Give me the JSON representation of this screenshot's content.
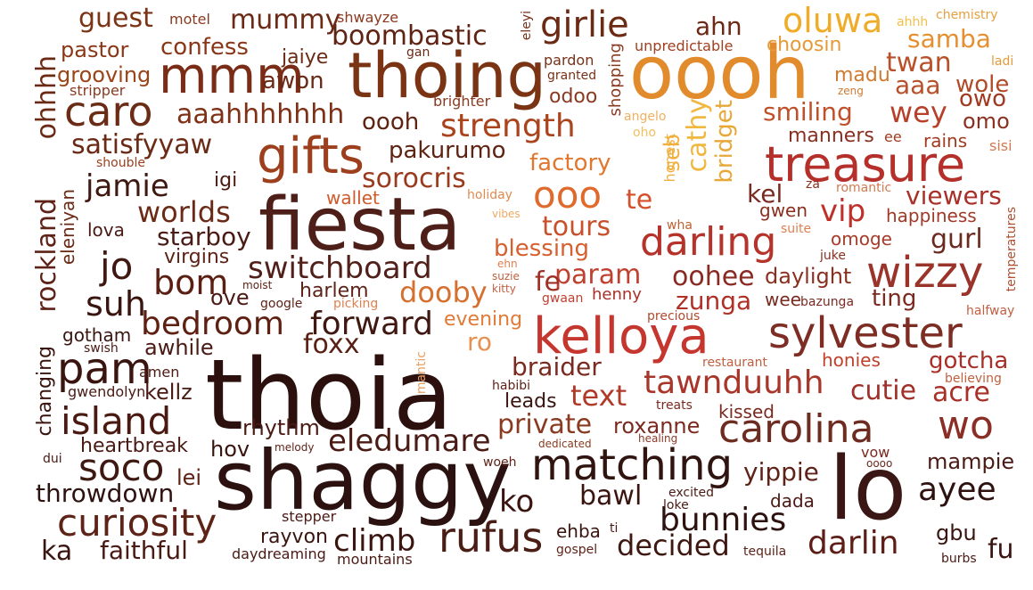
{
  "palette": {
    "darkest": "#2b0f0b",
    "dark_brown": "#5a2212",
    "brown": "#7a3516",
    "rust": "#963e1d",
    "red": "#b8332a",
    "orange": "#d9822a",
    "gold": "#f0b232"
  },
  "words": [
    {
      "text": "thoia",
      "color": "#2b100e"
    },
    {
      "text": "shaggy",
      "color": "#2b1210"
    },
    {
      "text": "fiesta",
      "color": "#4e1f18"
    },
    {
      "text": "oooh",
      "color": "#e28b2c"
    },
    {
      "text": "thoing",
      "color": "#7a3414"
    },
    {
      "text": "lo",
      "color": "#3a1714"
    },
    {
      "text": "kelloya",
      "color": "#c5362f"
    },
    {
      "text": "treasure",
      "color": "#b5302a"
    },
    {
      "text": "gifts",
      "color": "#9d3e1d"
    },
    {
      "text": "mmm",
      "color": "#7a2c16"
    },
    {
      "text": "sylvester",
      "color": "#7d2d23"
    },
    {
      "text": "matching",
      "color": "#2f1410"
    },
    {
      "text": "carolina",
      "color": "#6e2b20"
    },
    {
      "text": "darling",
      "color": "#b6332c"
    },
    {
      "text": "wizzy",
      "color": "#9a342a"
    },
    {
      "text": "pam",
      "color": "#3a1510"
    },
    {
      "text": "rufus",
      "color": "#4a1d15"
    },
    {
      "text": "caro",
      "color": "#6b2c16"
    },
    {
      "text": "island",
      "color": "#4a1a12"
    },
    {
      "text": "curiosity",
      "color": "#5e2317"
    },
    {
      "text": "soco",
      "color": "#3f1812"
    },
    {
      "text": "strength",
      "color": "#a9441d"
    },
    {
      "text": "ooo",
      "color": "#e06a2c"
    },
    {
      "text": "girlie",
      "color": "#6b2a14"
    },
    {
      "text": "oluwa",
      "color": "#f0ac28"
    },
    {
      "text": "tawnduuhh",
      "color": "#a8362a"
    },
    {
      "text": "bedroom",
      "color": "#5e2012"
    },
    {
      "text": "forward",
      "color": "#3f1812"
    },
    {
      "text": "switchboard",
      "color": "#52201a"
    },
    {
      "text": "wo",
      "color": "#8a2e26"
    },
    {
      "text": "ayee",
      "color": "#2e1210"
    },
    {
      "text": "bunnies",
      "color": "#2e1210"
    },
    {
      "text": "darlin",
      "color": "#5e1e18"
    },
    {
      "text": "decided",
      "color": "#3f1812"
    },
    {
      "text": "bom",
      "color": "#5a1e12"
    },
    {
      "text": "jo",
      "color": "#3f1812"
    },
    {
      "text": "worlds",
      "color": "#6b2a16"
    },
    {
      "text": "jamie",
      "color": "#3f1812"
    },
    {
      "text": "satisfyyaw",
      "color": "#6b2a16"
    },
    {
      "text": "aaahhhhhhh",
      "color": "#7e3116"
    },
    {
      "text": "boombastic",
      "color": "#5e2312"
    },
    {
      "text": "mummy",
      "color": "#6b2a16"
    },
    {
      "text": "guest",
      "color": "#7a3416"
    },
    {
      "text": "confess",
      "color": "#8a3718"
    },
    {
      "text": "pastor",
      "color": "#8a3718"
    },
    {
      "text": "grooving",
      "color": "#9a4418"
    },
    {
      "text": "ohhhh",
      "color": "#6b2a16"
    },
    {
      "text": "sorocris",
      "color": "#9a3a1d"
    },
    {
      "text": "pakurumo",
      "color": "#5e2312"
    },
    {
      "text": "oooh",
      "color": "#5e2312"
    },
    {
      "text": "awon",
      "color": "#6b2a16"
    },
    {
      "text": "jaiye",
      "color": "#6b2a16"
    },
    {
      "text": "factory",
      "color": "#e07830"
    },
    {
      "text": "tours",
      "color": "#c8502a"
    },
    {
      "text": "te",
      "color": "#d5502a"
    },
    {
      "text": "blessing",
      "color": "#d66030"
    },
    {
      "text": "param",
      "color": "#c04030"
    },
    {
      "text": "fe",
      "color": "#a03025"
    },
    {
      "text": "oohee",
      "color": "#8a2a22"
    },
    {
      "text": "zunga",
      "color": "#b03028"
    },
    {
      "text": "dooby",
      "color": "#d57030"
    },
    {
      "text": "evening",
      "color": "#e07a36"
    },
    {
      "text": "ro",
      "color": "#e89050"
    },
    {
      "text": "braider",
      "color": "#7a2a20"
    },
    {
      "text": "text",
      "color": "#b03a28"
    },
    {
      "text": "private",
      "color": "#8a3a20"
    },
    {
      "text": "roxanne",
      "color": "#7a2a20"
    },
    {
      "text": "eledumare",
      "color": "#4a1a14"
    },
    {
      "text": "foxx",
      "color": "#5a2014"
    },
    {
      "text": "harlem",
      "color": "#5e2318"
    },
    {
      "text": "starboy",
      "color": "#4a1a14"
    },
    {
      "text": "virgins",
      "color": "#5e2318"
    },
    {
      "text": "suh",
      "color": "#3a1510"
    },
    {
      "text": "ove",
      "color": "#4a1a14"
    },
    {
      "text": "awhile",
      "color": "#4a1a14"
    },
    {
      "text": "kellz",
      "color": "#4a1a14"
    },
    {
      "text": "rhythm",
      "color": "#4a1a14"
    },
    {
      "text": "hov",
      "color": "#3a1510"
    },
    {
      "text": "heartbreak",
      "color": "#4a1a14"
    },
    {
      "text": "throwdown",
      "color": "#2e1210"
    },
    {
      "text": "lei",
      "color": "#5e2318"
    },
    {
      "text": "faithful",
      "color": "#4a1a14"
    },
    {
      "text": "ka",
      "color": "#3a1510"
    },
    {
      "text": "climb",
      "color": "#3a1510"
    },
    {
      "text": "rayvon",
      "color": "#3a1510"
    },
    {
      "text": "stepper",
      "color": "#4a1a14"
    },
    {
      "text": "daydreaming",
      "color": "#4a1a14"
    },
    {
      "text": "mountains",
      "color": "#4a1a14"
    },
    {
      "text": "gotham",
      "color": "#3a1510"
    },
    {
      "text": "swish",
      "color": "#4a1a14"
    },
    {
      "text": "amen",
      "color": "#4a1a14"
    },
    {
      "text": "gwendolyn",
      "color": "#4a1a14"
    },
    {
      "text": "changing",
      "color": "#3a1510"
    },
    {
      "text": "rockland",
      "color": "#5e2318"
    },
    {
      "text": "eleniyan",
      "color": "#6b2a16"
    },
    {
      "text": "lova",
      "color": "#4a1a14"
    },
    {
      "text": "igi",
      "color": "#4a1a14"
    },
    {
      "text": "dui",
      "color": "#4a1a14"
    },
    {
      "text": "motel",
      "color": "#8a3a20"
    },
    {
      "text": "stripper",
      "color": "#8a3a20"
    },
    {
      "text": "shouble",
      "color": "#9a4020"
    },
    {
      "text": "shwayze",
      "color": "#8a3a20"
    },
    {
      "text": "gan",
      "color": "#6b2a16"
    },
    {
      "text": "brighter",
      "color": "#8a3a20"
    },
    {
      "text": "odoo",
      "color": "#8a3a20"
    },
    {
      "text": "pardon",
      "color": "#7a3018"
    },
    {
      "text": "granted",
      "color": "#7a3018"
    },
    {
      "text": "eleyi",
      "color": "#7a3018"
    },
    {
      "text": "shopping",
      "color": "#8a3a20"
    },
    {
      "text": "unpredictable",
      "color": "#a04020"
    },
    {
      "text": "ahn",
      "color": "#6b2a16"
    },
    {
      "text": "choosin",
      "color": "#e59a3a"
    },
    {
      "text": "ahhh",
      "color": "#f2c048"
    },
    {
      "text": "chemistry",
      "color": "#e5a040"
    },
    {
      "text": "samba",
      "color": "#e59030"
    },
    {
      "text": "twan",
      "color": "#b8502a"
    },
    {
      "text": "ladi",
      "color": "#e59a3a"
    },
    {
      "text": "madu",
      "color": "#d07a30"
    },
    {
      "text": "zeng",
      "color": "#d07a30"
    },
    {
      "text": "aaa",
      "color": "#b8502a"
    },
    {
      "text": "wole",
      "color": "#b04a28"
    },
    {
      "text": "owo",
      "color": "#a03a20"
    },
    {
      "text": "smiling",
      "color": "#c0502a"
    },
    {
      "text": "wey",
      "color": "#b8402a"
    },
    {
      "text": "omo",
      "color": "#8a3020"
    },
    {
      "text": "manners",
      "color": "#8a3020"
    },
    {
      "text": "ee",
      "color": "#a03a20"
    },
    {
      "text": "rains",
      "color": "#a03a20"
    },
    {
      "text": "sisi",
      "color": "#d07a50"
    },
    {
      "text": "angelo",
      "color": "#f0b060"
    },
    {
      "text": "oho",
      "color": "#f2c060"
    },
    {
      "text": "seb",
      "color": "#f0b040"
    },
    {
      "text": "honest",
      "color": "#f0b040"
    },
    {
      "text": "cathy",
      "color": "#f0b840"
    },
    {
      "text": "bridget",
      "color": "#e8a838"
    },
    {
      "text": "kel",
      "color": "#7a2a20"
    },
    {
      "text": "za",
      "color": "#8a3020"
    },
    {
      "text": "romantic",
      "color": "#d07a50"
    },
    {
      "text": "viewers",
      "color": "#a83028"
    },
    {
      "text": "gwen",
      "color": "#8a3020"
    },
    {
      "text": "vip",
      "color": "#c0302a"
    },
    {
      "text": "happiness",
      "color": "#a03a28"
    },
    {
      "text": "temperatures",
      "color": "#b05030"
    },
    {
      "text": "wha",
      "color": "#c06030"
    },
    {
      "text": "suite",
      "color": "#e08050"
    },
    {
      "text": "omoge",
      "color": "#a83a28"
    },
    {
      "text": "gurl",
      "color": "#6b2a20"
    },
    {
      "text": "juke",
      "color": "#8a3020"
    },
    {
      "text": "daylight",
      "color": "#8a3020"
    },
    {
      "text": "wee",
      "color": "#7a2a20"
    },
    {
      "text": "bazunga",
      "color": "#7a2a20"
    },
    {
      "text": "ting",
      "color": "#7a2a20"
    },
    {
      "text": "halfway",
      "color": "#c06040"
    },
    {
      "text": "precious",
      "color": "#b04a30"
    },
    {
      "text": "restaurant",
      "color": "#c06040"
    },
    {
      "text": "honies",
      "color": "#c0402a"
    },
    {
      "text": "gotcha",
      "color": "#a83028"
    },
    {
      "text": "believing",
      "color": "#c06040"
    },
    {
      "text": "cutie",
      "color": "#a03028"
    },
    {
      "text": "acre",
      "color": "#a83028"
    },
    {
      "text": "kissed",
      "color": "#7a2a20"
    },
    {
      "text": "treats",
      "color": "#7a2a20"
    },
    {
      "text": "healing",
      "color": "#8a3a28"
    },
    {
      "text": "yippie",
      "color": "#5e2318"
    },
    {
      "text": "vow",
      "color": "#7a2a20"
    },
    {
      "text": "oooo",
      "color": "#6b2a20"
    },
    {
      "text": "mampie",
      "color": "#4a1a14"
    },
    {
      "text": "dada",
      "color": "#4a1a14"
    },
    {
      "text": "bawl",
      "color": "#3a1510"
    },
    {
      "text": "excited",
      "color": "#4a1a14"
    },
    {
      "text": "loke",
      "color": "#4a1a14"
    },
    {
      "text": "ko",
      "color": "#3a1510"
    },
    {
      "text": "ehba",
      "color": "#3a1510"
    },
    {
      "text": "ti",
      "color": "#4a1a14"
    },
    {
      "text": "gospel",
      "color": "#5e2318"
    },
    {
      "text": "tequila",
      "color": "#5e2318"
    },
    {
      "text": "gbu",
      "color": "#3a1510"
    },
    {
      "text": "fu",
      "color": "#3a1510"
    },
    {
      "text": "burbs",
      "color": "#4a1a14"
    },
    {
      "text": "dedicated",
      "color": "#8a3a20"
    },
    {
      "text": "woeh",
      "color": "#5e2318"
    },
    {
      "text": "melody",
      "color": "#5e2318"
    },
    {
      "text": "leads",
      "color": "#3a1510"
    },
    {
      "text": "habibi",
      "color": "#5e2318"
    },
    {
      "text": "mantic",
      "color": "#e8a060"
    },
    {
      "text": "henny",
      "color": "#a83028"
    },
    {
      "text": "gwaan",
      "color": "#c04030"
    },
    {
      "text": "kitty",
      "color": "#c06040"
    },
    {
      "text": "suzie",
      "color": "#c06040"
    },
    {
      "text": "ehn",
      "color": "#e08050"
    },
    {
      "text": "moist",
      "color": "#5e2318"
    },
    {
      "text": "google",
      "color": "#5e2318"
    },
    {
      "text": "picking",
      "color": "#e08050"
    },
    {
      "text": "wallet",
      "color": "#d05a2a"
    },
    {
      "text": "holiday",
      "color": "#e08a50"
    },
    {
      "text": "vibes",
      "color": "#f0a860"
    }
  ]
}
